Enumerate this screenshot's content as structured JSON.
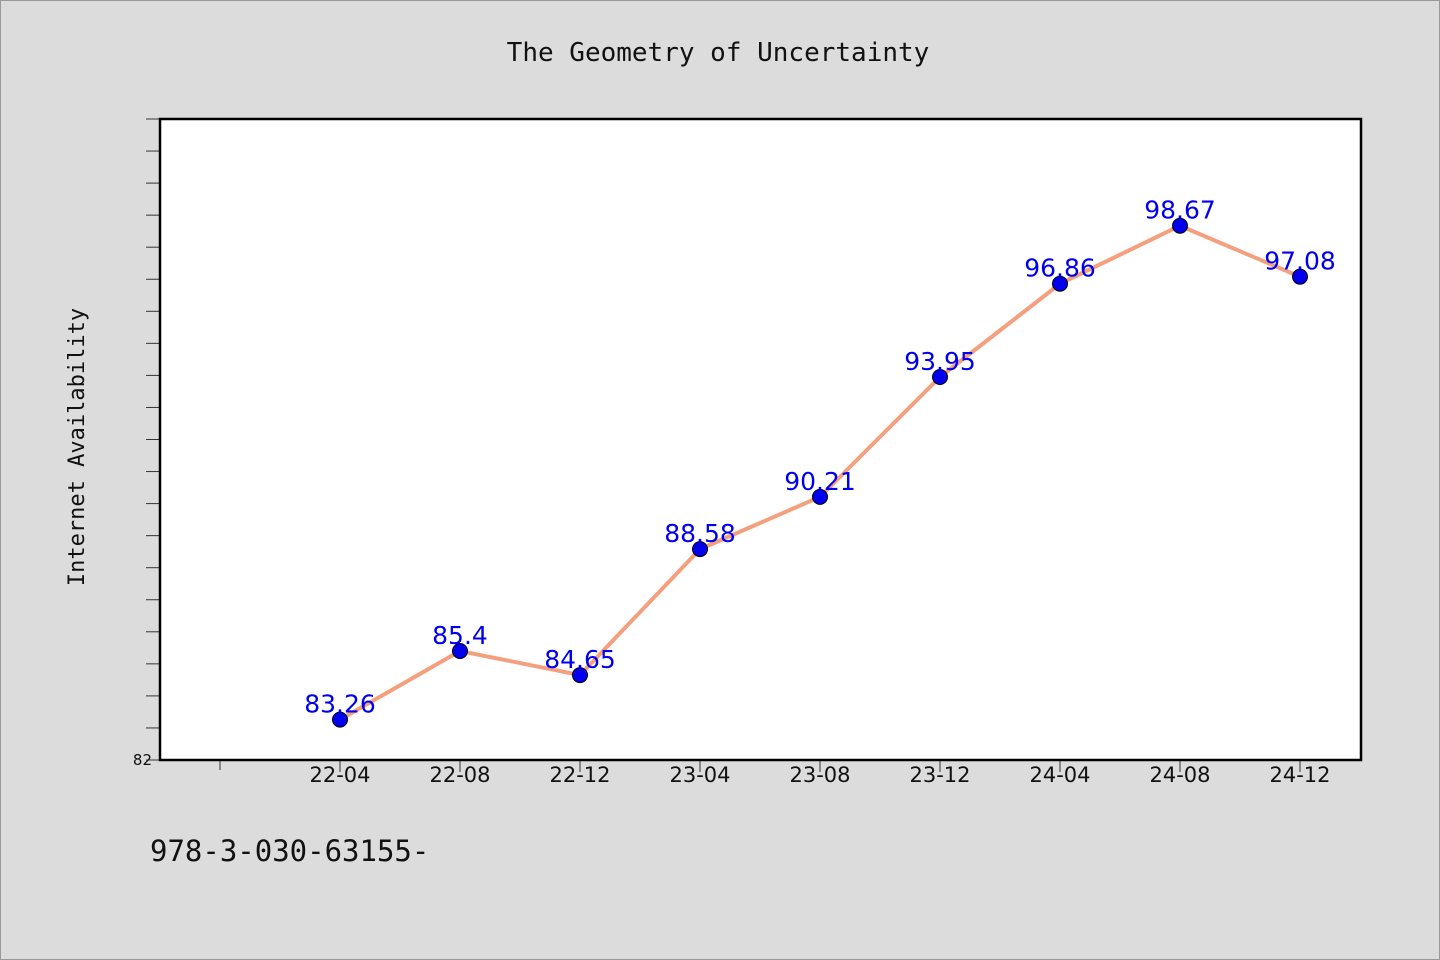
{
  "chart_data": {
    "type": "line",
    "title": "The Geometry of Uncertainty",
    "xlabel": "",
    "ylabel": "Internet Availability",
    "categories": [
      "22-04",
      "22-08",
      "22-12",
      "23-04",
      "23-08",
      "23-12",
      "24-04",
      "24-08",
      "24-12"
    ],
    "series": [
      {
        "values": [
          83.26,
          85.4,
          84.65,
          88.58,
          90.21,
          93.95,
          96.86,
          98.67,
          97.08
        ]
      }
    ],
    "ylim": [
      82,
      102
    ],
    "y_tick_labels": [
      {
        "value": 82,
        "label": "82"
      }
    ],
    "grid": false,
    "legend": "none",
    "line_color": "#f4a07e",
    "marker_color": "#0000ee",
    "label_color": "#0000ee"
  },
  "footnote": "978-3-030-63155-"
}
